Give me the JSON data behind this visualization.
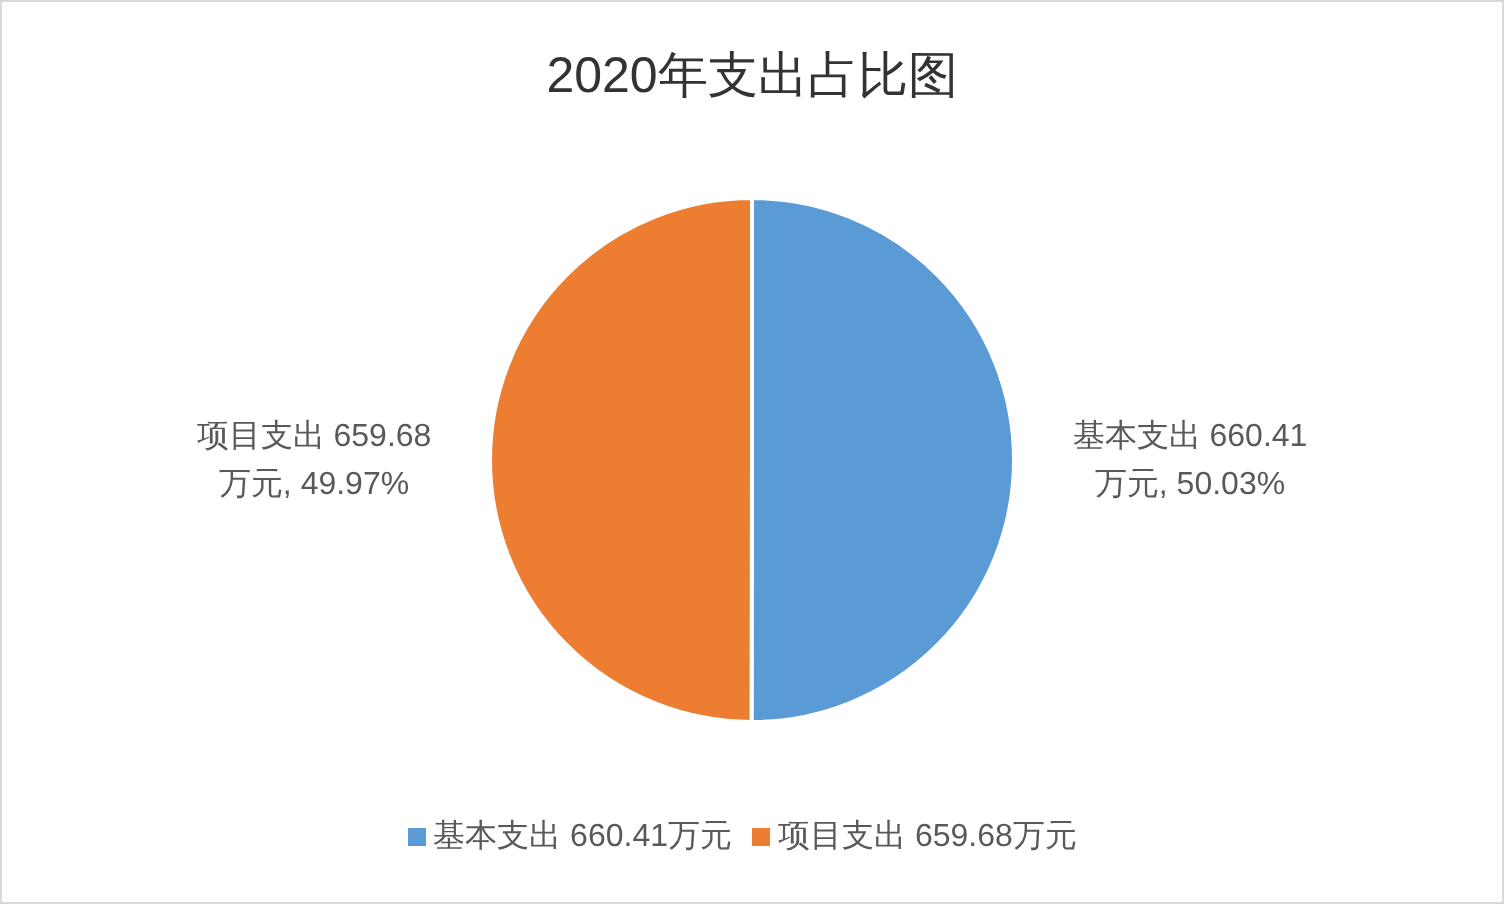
{
  "chart_data": {
    "type": "pie",
    "title": "2020年支出占比图",
    "categories": [
      "基本支出 660.41万元",
      "项目支出 659.68万元"
    ],
    "values": [
      660.41,
      659.68
    ],
    "colors": [
      "#5b9bd5",
      "#ed7d31"
    ],
    "value_labels": [
      "基本支出 660.41\n万元, 50.03%",
      "项目支出 659.68\n万元, 49.97%"
    ],
    "legend": "bottom"
  }
}
